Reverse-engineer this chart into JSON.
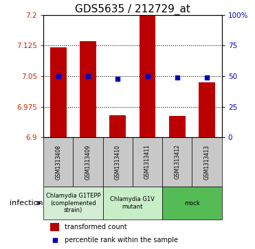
{
  "title": "GDS5635 / 212729_at",
  "samples": [
    "GSM1313408",
    "GSM1313409",
    "GSM1313410",
    "GSM1313411",
    "GSM1313412",
    "GSM1313413"
  ],
  "bar_values": [
    7.12,
    7.135,
    6.955,
    7.2,
    6.952,
    7.035
  ],
  "percentile_values": [
    50,
    50,
    48,
    50,
    49,
    49
  ],
  "ylim": [
    6.9,
    7.2
  ],
  "yticks": [
    6.9,
    6.975,
    7.05,
    7.125,
    7.2
  ],
  "ytick_labels": [
    "6.9",
    "6.975",
    "7.05",
    "7.125",
    "7.2"
  ],
  "right_yticks": [
    0,
    25,
    50,
    75,
    100
  ],
  "right_ytick_labels": [
    "0",
    "25",
    "50",
    "75",
    "100%"
  ],
  "bar_color": "#bb0000",
  "dot_color": "#0000bb",
  "bar_width": 0.55,
  "groups": [
    {
      "label": "Chlamydia G1TEPP\n(complemented\nstrain)",
      "indices": [
        0,
        1
      ],
      "color": "#d4edd4"
    },
    {
      "label": "Chlamydia G1V\nmutant",
      "indices": [
        2,
        3
      ],
      "color": "#c8eec8"
    },
    {
      "label": "mock",
      "indices": [
        4,
        5
      ],
      "color": "#55bb55"
    }
  ],
  "factor_label": "infection",
  "legend_bar_label": "transformed count",
  "legend_dot_label": "percentile rank within the sample",
  "title_fontsize": 11,
  "left_tick_color": "#cc2200",
  "right_tick_color": "#0000cc",
  "sample_box_color": "#c8c8c8",
  "grid_linestyle": ":",
  "grid_linewidth": 0.8,
  "grid_color": "black"
}
